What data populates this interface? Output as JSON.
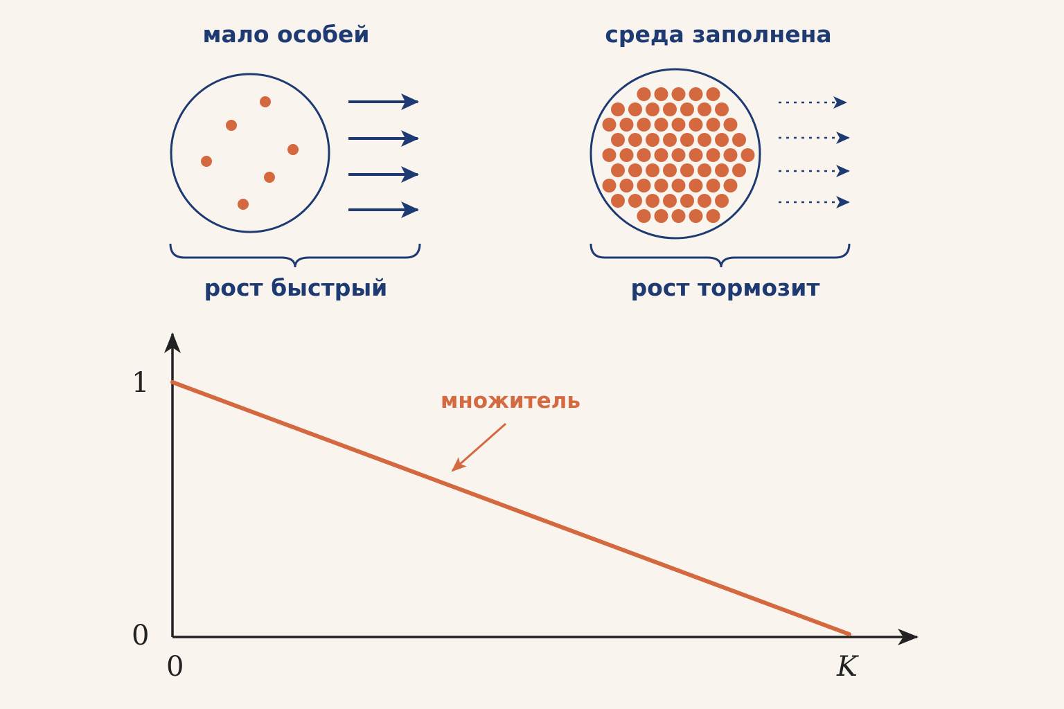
{
  "panels": {
    "left": {
      "title": "мало особей",
      "caption": "рост быстрый",
      "dot_count": 6,
      "arrow_style": "solid"
    },
    "right": {
      "title": "среда заполнена",
      "caption": "рост тормозит",
      "arrow_style": "dotted"
    }
  },
  "chart_data": {
    "type": "line",
    "series": [
      {
        "name": "множитель",
        "x": [
          0,
          1
        ],
        "y": [
          1,
          0
        ]
      }
    ],
    "y_ticks": [
      "0",
      "1"
    ],
    "x_ticks": [
      "0",
      "K"
    ],
    "xlim": [
      0,
      1
    ],
    "ylim": [
      0,
      1
    ]
  },
  "colors": {
    "navy": "#1e3a72",
    "orange": "#d4683f",
    "background": "#faf4ee"
  }
}
